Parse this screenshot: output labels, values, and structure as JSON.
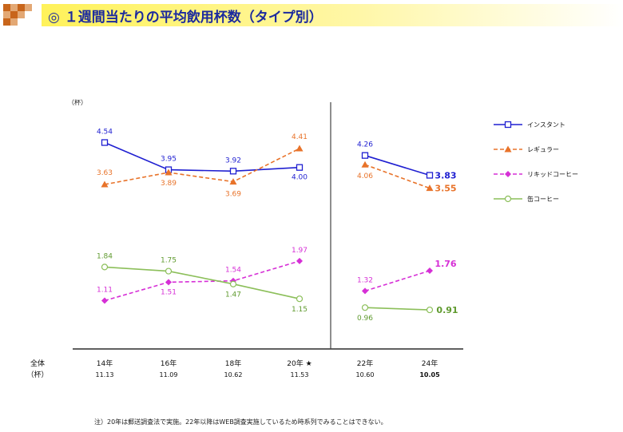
{
  "title": "◎ １週間当たりの平均飲用杯数（タイプ別）",
  "note": "注）20年は郵送調査法で実施。22年以降はWEB調査実施しているため時系列でみることはできない。",
  "unit_label": "（杯）",
  "total_row": {
    "label_line1": "全体",
    "label_line2": "（杯）",
    "values": [
      "11.13",
      "11.09",
      "10.62",
      "11.53",
      "10.60",
      "10.05"
    ]
  },
  "chart_data": {
    "type": "line",
    "x": [
      "14年",
      "16年",
      "18年",
      "20年 ★",
      "22年",
      "24年"
    ],
    "ylabel": "（杯）",
    "legend_position": "right",
    "series": [
      {
        "name": "インスタント",
        "color": "#1f1fd1",
        "marker": "square",
        "values": [
          4.54,
          3.95,
          3.92,
          4.0,
          4.26,
          3.83
        ]
      },
      {
        "name": "レギュラー",
        "color": "#e8732a",
        "marker": "triangle",
        "dashed": true,
        "values": [
          3.63,
          3.89,
          3.69,
          4.41,
          4.06,
          3.55
        ]
      },
      {
        "name": "リキッドコーヒー",
        "color": "#d62fd6",
        "marker": "diamond",
        "dashed": true,
        "values": [
          1.11,
          1.51,
          1.54,
          1.97,
          1.32,
          1.76
        ]
      },
      {
        "name": "缶コーヒー",
        "color": "#8cbf5a",
        "label_color": "#5f9a2e",
        "marker": "circle",
        "values": [
          1.84,
          1.75,
          1.47,
          1.15,
          0.96,
          0.91
        ]
      }
    ]
  }
}
